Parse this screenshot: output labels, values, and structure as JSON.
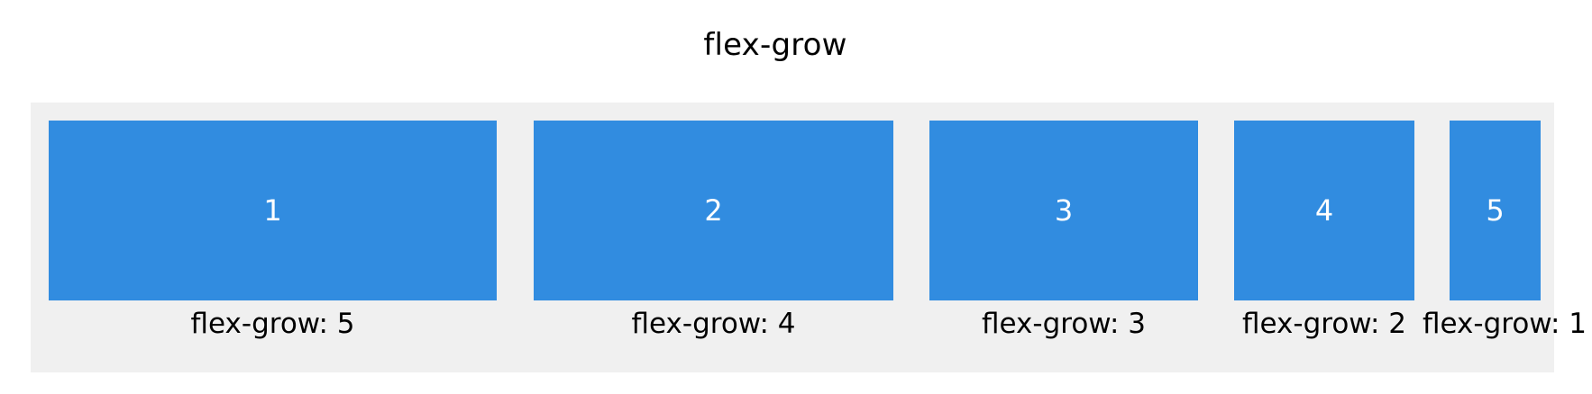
{
  "title": "flex-grow",
  "colors": {
    "item_fill": "#318ce0",
    "item_text": "#ffffff",
    "container_bg": "#f0f0f0",
    "page_bg": "#ffffff"
  },
  "items": [
    {
      "number": "1",
      "label": "flex-grow: 5"
    },
    {
      "number": "2",
      "label": "flex-grow: 4"
    },
    {
      "number": "3",
      "label": "flex-grow: 3"
    },
    {
      "number": "4",
      "label": "flex-grow: 2"
    },
    {
      "number": "5",
      "label": "flex-grow: 1"
    }
  ]
}
